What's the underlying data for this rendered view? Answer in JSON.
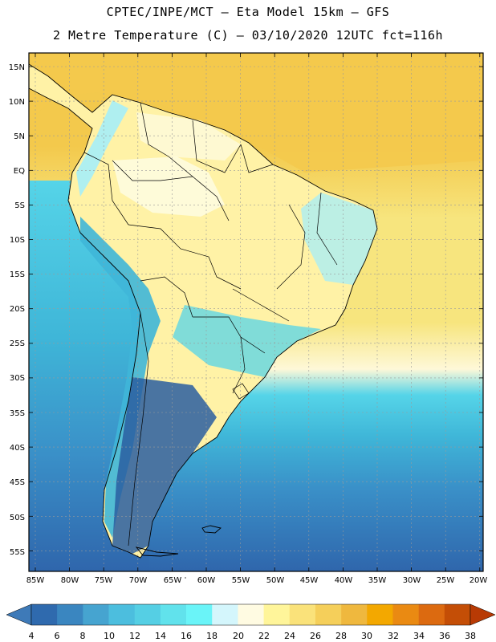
{
  "header": {
    "line1": "CPTEC/INPE/MCT –  Eta Model 15km – GFS",
    "line2": "2 Metre Temperature (C) – 03/10/2020 12UTC fct=116h"
  },
  "map": {
    "lat_labels": [
      "15N",
      "10N",
      "5N",
      "EQ",
      "5S",
      "10S",
      "15S",
      "20S",
      "25S",
      "30S",
      "35S",
      "40S",
      "45S",
      "50S",
      "55S"
    ],
    "lon_labels": [
      "85W",
      "80W",
      "75W",
      "70W",
      "65W",
      "60W",
      "55W",
      "50W",
      "45W",
      "40W",
      "35W",
      "30W",
      "25W",
      "20W"
    ],
    "colors": {
      "ocean_warm": "#f3c94c",
      "ocean_yellow": "#f7e57e",
      "ocean_pale": "#fef8d8",
      "ocean_cyan": "#55d4e8",
      "ocean_mid": "#3fb6d8",
      "ocean_blue": "#3a90c8",
      "ocean_deep": "#2f66ac",
      "land_yellow": "#fff2a6",
      "land_pale": "#fefce6",
      "land_cyan": "#a6eef8",
      "land_deep": "#2a5ea0"
    }
  },
  "colorbar": {
    "labels": [
      "4",
      "6",
      "8",
      "10",
      "12",
      "14",
      "16",
      "18",
      "20",
      "22",
      "24",
      "26",
      "28",
      "30",
      "32",
      "34",
      "36",
      "38"
    ],
    "colors": [
      "#3e7ab8",
      "#2f6aae",
      "#3a86c0",
      "#46a4d0",
      "#4cbede",
      "#55cfe4",
      "#61e2ec",
      "#6af4f8",
      "#d4f6fc",
      "#fffbe2",
      "#fff59a",
      "#fae27a",
      "#f5cf5a",
      "#efb83e",
      "#f3a800",
      "#ea8a12",
      "#dc6a10",
      "#c44e06",
      "#b83a04"
    ]
  }
}
